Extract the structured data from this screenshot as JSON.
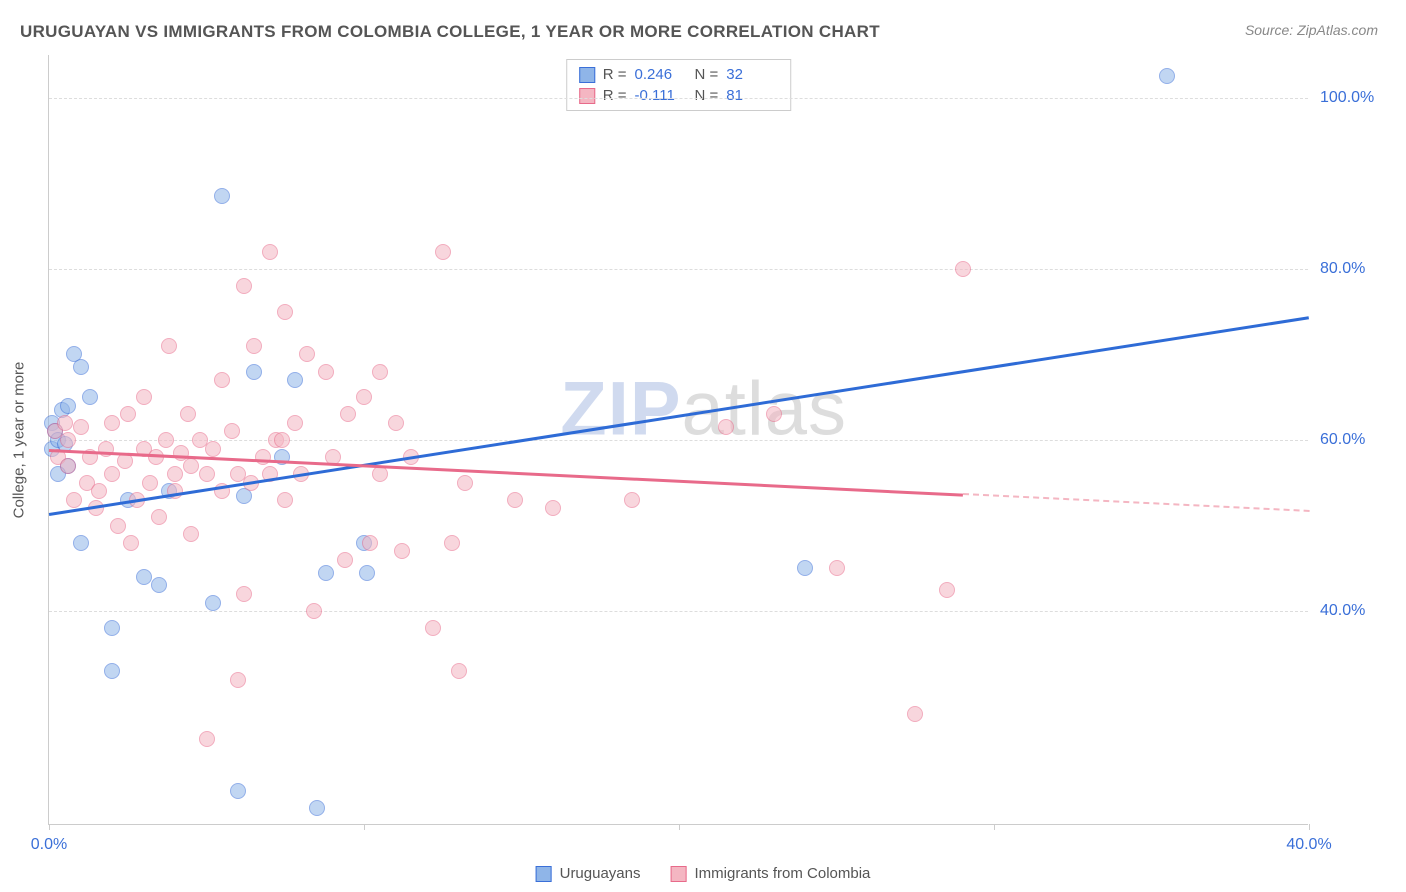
{
  "title": "URUGUAYAN VS IMMIGRANTS FROM COLOMBIA COLLEGE, 1 YEAR OR MORE CORRELATION CHART",
  "source": "Source: ZipAtlas.com",
  "watermark": {
    "part1": "ZIP",
    "part2": "atlas"
  },
  "chart": {
    "type": "scatter",
    "y_axis_title": "College, 1 year or more",
    "background_color": "#ffffff",
    "grid_color": "#dddddd",
    "axis_color": "#cccccc",
    "label_color": "#3a6fd8",
    "title_color": "#555555",
    "title_fontsize": 17,
    "label_fontsize": 16,
    "xlim": [
      0,
      40
    ],
    "ylim": [
      15,
      105
    ],
    "x_ticks": [
      0,
      10,
      20,
      30,
      40
    ],
    "x_tick_labels": [
      "0.0%",
      "",
      "",
      "",
      "40.0%"
    ],
    "y_ticks": [
      40,
      60,
      80,
      100
    ],
    "y_tick_labels": [
      "40.0%",
      "60.0%",
      "80.0%",
      "100.0%"
    ],
    "marker_radius": 8,
    "marker_opacity": 0.55,
    "series": [
      {
        "name": "Uruguayans",
        "fill_color": "#8fb5e8",
        "stroke_color": "#3a6fd8",
        "R": "0.246",
        "N": "32",
        "regression": {
          "x0": 0,
          "y0": 51.5,
          "x1": 40,
          "y1": 74.5,
          "solid_color": "#2e6bd6",
          "solid_x_end": 40
        },
        "points": [
          [
            0.1,
            62
          ],
          [
            0.1,
            59
          ],
          [
            0.2,
            61
          ],
          [
            0.3,
            60
          ],
          [
            0.4,
            63.5
          ],
          [
            0.5,
            59.5
          ],
          [
            0.6,
            64
          ],
          [
            0.8,
            70
          ],
          [
            1.0,
            68.5
          ],
          [
            1.0,
            48
          ],
          [
            1.3,
            65
          ],
          [
            0.6,
            57
          ],
          [
            2.0,
            38
          ],
          [
            2.0,
            33
          ],
          [
            2.5,
            53
          ],
          [
            3.0,
            44
          ],
          [
            3.5,
            43
          ],
          [
            3.8,
            54
          ],
          [
            5.2,
            41
          ],
          [
            5.5,
            88.5
          ],
          [
            6.0,
            19
          ],
          [
            6.2,
            53.5
          ],
          [
            6.5,
            68
          ],
          [
            7.4,
            58
          ],
          [
            7.8,
            67
          ],
          [
            8.5,
            17
          ],
          [
            8.8,
            44.5
          ],
          [
            10.0,
            48
          ],
          [
            10.1,
            44.5
          ],
          [
            24.0,
            45
          ],
          [
            35.5,
            102.5
          ],
          [
            0.3,
            56
          ]
        ]
      },
      {
        "name": "Immigrants from Colombia",
        "fill_color": "#f4b6c2",
        "stroke_color": "#e86a8a",
        "R": "-0.111",
        "N": "81",
        "regression": {
          "x0": 0,
          "y0": 59.0,
          "x1": 40,
          "y1": 51.8,
          "solid_color": "#e86a8a",
          "solid_x_end": 29,
          "dashed_color": "#f4b6c2"
        },
        "points": [
          [
            0.2,
            61
          ],
          [
            0.3,
            58
          ],
          [
            0.5,
            62
          ],
          [
            0.6,
            57
          ],
          [
            0.6,
            60
          ],
          [
            0.8,
            53
          ],
          [
            1.0,
            61.5
          ],
          [
            1.2,
            55
          ],
          [
            1.3,
            58
          ],
          [
            1.5,
            52
          ],
          [
            1.6,
            54
          ],
          [
            1.8,
            59
          ],
          [
            2.0,
            62
          ],
          [
            2.0,
            56
          ],
          [
            2.2,
            50
          ],
          [
            2.4,
            57.5
          ],
          [
            2.5,
            63
          ],
          [
            2.6,
            48
          ],
          [
            2.8,
            53
          ],
          [
            3.0,
            65
          ],
          [
            3.0,
            59
          ],
          [
            3.2,
            55
          ],
          [
            3.4,
            58
          ],
          [
            3.5,
            51
          ],
          [
            3.7,
            60
          ],
          [
            3.8,
            71
          ],
          [
            4.0,
            56
          ],
          [
            4.0,
            54
          ],
          [
            4.2,
            58.5
          ],
          [
            4.4,
            63
          ],
          [
            4.5,
            57
          ],
          [
            4.5,
            49
          ],
          [
            4.8,
            60
          ],
          [
            5.0,
            56
          ],
          [
            5.0,
            25
          ],
          [
            5.2,
            59
          ],
          [
            5.5,
            67
          ],
          [
            5.5,
            54
          ],
          [
            5.8,
            61
          ],
          [
            6.0,
            56
          ],
          [
            6.0,
            32
          ],
          [
            6.2,
            42
          ],
          [
            6.2,
            78
          ],
          [
            6.4,
            55
          ],
          [
            6.5,
            71
          ],
          [
            6.8,
            58
          ],
          [
            7.0,
            82
          ],
          [
            7.0,
            56
          ],
          [
            7.2,
            60
          ],
          [
            7.4,
            60
          ],
          [
            7.5,
            53
          ],
          [
            7.5,
            75
          ],
          [
            7.8,
            62
          ],
          [
            8.0,
            56
          ],
          [
            8.2,
            70
          ],
          [
            8.4,
            40
          ],
          [
            8.8,
            68
          ],
          [
            9.0,
            58
          ],
          [
            9.4,
            46
          ],
          [
            9.5,
            63
          ],
          [
            10.0,
            65
          ],
          [
            10.2,
            48
          ],
          [
            10.5,
            56
          ],
          [
            10.5,
            68
          ],
          [
            11.0,
            62
          ],
          [
            11.2,
            47
          ],
          [
            11.5,
            58
          ],
          [
            12.2,
            38
          ],
          [
            12.5,
            82
          ],
          [
            12.8,
            48
          ],
          [
            13.0,
            33
          ],
          [
            13.2,
            55
          ],
          [
            14.8,
            53
          ],
          [
            16.0,
            52
          ],
          [
            18.5,
            53
          ],
          [
            21.5,
            61.5
          ],
          [
            23.0,
            63
          ],
          [
            25.0,
            45
          ],
          [
            27.5,
            28
          ],
          [
            28.5,
            42.5
          ],
          [
            29.0,
            80
          ]
        ]
      }
    ]
  },
  "stats_box": {
    "rows": [
      {
        "swatch_fill": "#8fb5e8",
        "swatch_stroke": "#3a6fd8",
        "r_label": "R =",
        "r_val": "0.246",
        "n_label": "N =",
        "n_val": "32"
      },
      {
        "swatch_fill": "#f4b6c2",
        "swatch_stroke": "#e86a8a",
        "r_label": "R =",
        "r_val": "-0.111",
        "n_label": "N =",
        "n_val": "81"
      }
    ]
  },
  "legend": {
    "items": [
      {
        "label": "Uruguayans",
        "fill": "#8fb5e8",
        "stroke": "#3a6fd8"
      },
      {
        "label": "Immigrants from Colombia",
        "fill": "#f4b6c2",
        "stroke": "#e86a8a"
      }
    ]
  }
}
